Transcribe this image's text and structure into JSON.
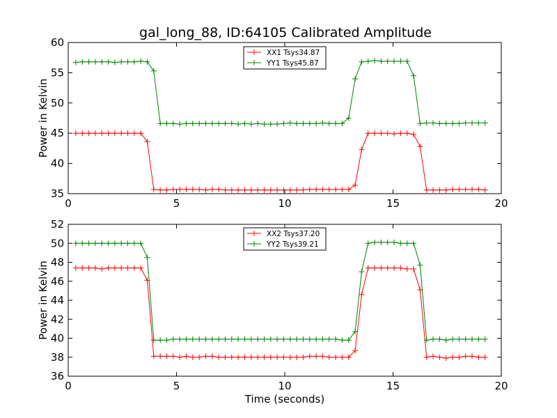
{
  "title": "gal_long_88, ID:64105 Calibrated Amplitude",
  "colors": {
    "xx": "#ff0000",
    "yy": "#008000"
  },
  "chart_data": [
    {
      "type": "line",
      "title": "gal_long_88, ID:64105 Calibrated Amplitude",
      "xlabel": "",
      "ylabel": "Power in Kelvin",
      "xlim": [
        0,
        20
      ],
      "ylim": [
        35,
        60
      ],
      "xticks": [
        0,
        5,
        10,
        15,
        20
      ],
      "yticks": [
        35,
        40,
        45,
        50,
        55,
        60
      ],
      "grid": false,
      "legend_position": "top-center",
      "x": [
        0.35,
        0.65,
        0.95,
        1.25,
        1.55,
        1.85,
        2.15,
        2.45,
        2.75,
        3.05,
        3.35,
        3.65,
        3.95,
        4.25,
        4.55,
        4.85,
        5.15,
        5.45,
        5.75,
        6.05,
        6.35,
        6.65,
        6.95,
        7.25,
        7.55,
        7.85,
        8.15,
        8.45,
        8.75,
        9.05,
        9.35,
        9.65,
        9.95,
        10.25,
        10.55,
        10.85,
        11.15,
        11.45,
        11.75,
        12.05,
        12.35,
        12.65,
        12.95,
        13.25,
        13.55,
        13.85,
        14.15,
        14.45,
        14.75,
        15.05,
        15.35,
        15.65,
        15.95,
        16.25,
        16.55,
        16.85,
        17.15,
        17.45,
        17.75,
        18.05,
        18.35,
        18.65,
        18.95,
        19.25
      ],
      "series": [
        {
          "name": "XX1 Tsys34.87",
          "color": "#ff0000",
          "values": [
            45.0,
            45.0,
            45.0,
            45.0,
            45.0,
            45.0,
            45.0,
            45.0,
            45.0,
            45.0,
            45.0,
            43.6,
            35.7,
            35.6,
            35.6,
            35.7,
            35.7,
            35.7,
            35.7,
            35.7,
            35.6,
            35.7,
            35.7,
            35.6,
            35.6,
            35.6,
            35.6,
            35.6,
            35.6,
            35.6,
            35.6,
            35.6,
            35.6,
            35.6,
            35.6,
            35.6,
            35.7,
            35.7,
            35.7,
            35.7,
            35.7,
            35.7,
            35.7,
            36.4,
            42.3,
            45.0,
            45.0,
            45.0,
            45.0,
            44.9,
            45.0,
            45.0,
            44.8,
            42.8,
            35.6,
            35.6,
            35.6,
            35.6,
            35.7,
            35.7,
            35.7,
            35.7,
            35.7,
            35.6
          ]
        },
        {
          "name": "YY1 Tsys45.87",
          "color": "#008000",
          "values": [
            56.7,
            56.8,
            56.8,
            56.8,
            56.8,
            56.8,
            56.7,
            56.8,
            56.8,
            56.8,
            56.9,
            56.8,
            55.3,
            46.6,
            46.6,
            46.6,
            46.5,
            46.6,
            46.6,
            46.6,
            46.6,
            46.6,
            46.6,
            46.6,
            46.6,
            46.5,
            46.6,
            46.5,
            46.6,
            46.5,
            46.5,
            46.5,
            46.6,
            46.7,
            46.6,
            46.6,
            46.6,
            46.6,
            46.7,
            46.6,
            46.6,
            46.6,
            47.5,
            54.0,
            56.8,
            56.9,
            57.0,
            56.9,
            56.9,
            56.9,
            56.9,
            56.9,
            54.5,
            46.6,
            46.7,
            46.7,
            46.6,
            46.6,
            46.6,
            46.6,
            46.7,
            46.7,
            46.7,
            46.7
          ]
        }
      ]
    },
    {
      "type": "line",
      "title": "",
      "xlabel": "Time (seconds)",
      "ylabel": "Power in Kelvin",
      "xlim": [
        0,
        20
      ],
      "ylim": [
        36,
        52
      ],
      "xticks": [
        0,
        5,
        10,
        15,
        20
      ],
      "yticks": [
        36,
        38,
        40,
        42,
        44,
        46,
        48,
        50,
        52
      ],
      "grid": false,
      "legend_position": "top-center",
      "x": [
        0.35,
        0.65,
        0.95,
        1.25,
        1.55,
        1.85,
        2.15,
        2.45,
        2.75,
        3.05,
        3.35,
        3.65,
        3.95,
        4.25,
        4.55,
        4.85,
        5.15,
        5.45,
        5.75,
        6.05,
        6.35,
        6.65,
        6.95,
        7.25,
        7.55,
        7.85,
        8.15,
        8.45,
        8.75,
        9.05,
        9.35,
        9.65,
        9.95,
        10.25,
        10.55,
        10.85,
        11.15,
        11.45,
        11.75,
        12.05,
        12.35,
        12.65,
        12.95,
        13.25,
        13.55,
        13.85,
        14.15,
        14.45,
        14.75,
        15.05,
        15.35,
        15.65,
        15.95,
        16.25,
        16.55,
        16.85,
        17.15,
        17.45,
        17.75,
        18.05,
        18.35,
        18.65,
        18.95,
        19.25
      ],
      "series": [
        {
          "name": "XX2 Tsys37.20",
          "color": "#ff0000",
          "values": [
            47.4,
            47.4,
            47.4,
            47.4,
            47.3,
            47.4,
            47.4,
            47.4,
            47.4,
            47.4,
            47.4,
            46.1,
            38.1,
            38.1,
            38.1,
            38.1,
            38.0,
            38.1,
            38.0,
            38.0,
            38.1,
            38.1,
            38.0,
            38.0,
            38.0,
            38.0,
            38.0,
            38.0,
            38.0,
            38.0,
            38.0,
            38.0,
            38.0,
            38.0,
            38.0,
            38.0,
            38.1,
            38.1,
            38.1,
            38.0,
            38.0,
            38.0,
            38.0,
            38.7,
            44.6,
            47.4,
            47.4,
            47.4,
            47.4,
            47.4,
            47.4,
            47.3,
            47.3,
            45.1,
            38.0,
            38.1,
            38.0,
            37.9,
            38.0,
            38.0,
            38.1,
            38.1,
            38.0,
            38.0
          ]
        },
        {
          "name": "YY2 Tsys39.21",
          "color": "#008000",
          "values": [
            50.0,
            50.0,
            50.0,
            50.0,
            50.0,
            50.0,
            50.0,
            50.0,
            50.0,
            50.0,
            50.0,
            48.5,
            39.8,
            39.8,
            39.8,
            39.9,
            39.9,
            39.9,
            39.9,
            39.9,
            39.9,
            39.9,
            39.9,
            39.9,
            39.9,
            39.9,
            39.9,
            39.9,
            39.9,
            39.9,
            39.9,
            39.9,
            39.9,
            39.9,
            39.9,
            39.9,
            39.9,
            39.9,
            39.9,
            39.9,
            39.9,
            39.8,
            39.8,
            40.7,
            47.0,
            50.0,
            50.1,
            50.1,
            50.1,
            50.1,
            50.0,
            50.0,
            50.0,
            47.7,
            39.8,
            39.9,
            39.9,
            39.8,
            39.9,
            39.9,
            39.9,
            39.9,
            39.9,
            39.9
          ]
        }
      ]
    }
  ]
}
